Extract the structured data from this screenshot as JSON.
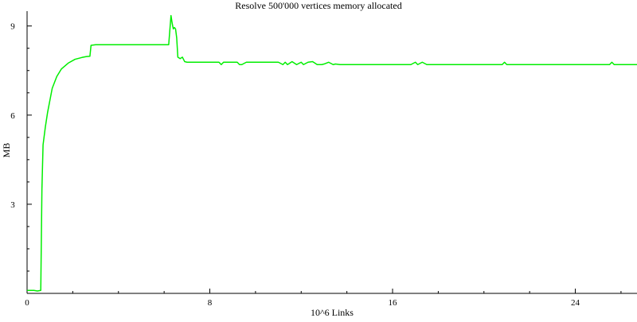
{
  "chart_data": {
    "type": "line",
    "title": "Resolve 500'000 vertices memory allocated",
    "xlabel": "10^6 Links",
    "ylabel": "MB",
    "xlim": [
      0,
      26.7
    ],
    "ylim": [
      0,
      9.5
    ],
    "xticks": [
      0,
      8,
      16,
      24
    ],
    "xtick_labels": [
      "0",
      "8",
      "16",
      "24"
    ],
    "yticks": [
      3,
      6,
      9
    ],
    "ytick_labels": [
      "3",
      "6",
      "9"
    ],
    "grid": false,
    "legend": "none",
    "series": [
      {
        "color": "#00ee00",
        "x": [
          0,
          0.3,
          0.45,
          0.6,
          0.62,
          0.65,
          0.7,
          0.8,
          0.9,
          1.0,
          1.1,
          1.3,
          1.5,
          1.8,
          2.1,
          2.4,
          2.6,
          2.75,
          2.8,
          3.0,
          4.0,
          5.0,
          6.0,
          6.2,
          6.3,
          6.35,
          6.4,
          6.45,
          6.5,
          6.55,
          6.6,
          6.7,
          6.8,
          6.9,
          7.0,
          7.2,
          8.0,
          8.4,
          8.5,
          8.6,
          8.8,
          9.2,
          9.3,
          9.4,
          9.6,
          10.0,
          11.0,
          11.2,
          11.3,
          11.4,
          11.6,
          11.8,
          12.0,
          12.1,
          12.3,
          12.5,
          12.7,
          12.9,
          13.0,
          13.2,
          13.4,
          13.5,
          13.7,
          14.0,
          15.0,
          16.0,
          16.8,
          17.0,
          17.1,
          17.3,
          17.5,
          18.0,
          20.0,
          20.8,
          20.9,
          21.0,
          22.0,
          24.0,
          25.5,
          25.6,
          25.7,
          26.7
        ],
        "y": [
          0.1,
          0.1,
          0.08,
          0.1,
          1.5,
          3.5,
          5.0,
          5.6,
          6.1,
          6.5,
          6.9,
          7.3,
          7.55,
          7.75,
          7.88,
          7.94,
          7.97,
          7.98,
          8.35,
          8.37,
          8.37,
          8.37,
          8.37,
          8.37,
          9.35,
          9.1,
          8.9,
          8.95,
          8.9,
          8.6,
          7.95,
          7.9,
          7.95,
          7.8,
          7.78,
          7.78,
          7.78,
          7.78,
          7.7,
          7.78,
          7.78,
          7.78,
          7.7,
          7.7,
          7.78,
          7.78,
          7.78,
          7.7,
          7.78,
          7.7,
          7.8,
          7.7,
          7.78,
          7.7,
          7.78,
          7.8,
          7.7,
          7.7,
          7.72,
          7.78,
          7.7,
          7.72,
          7.7,
          7.7,
          7.7,
          7.7,
          7.7,
          7.78,
          7.7,
          7.78,
          7.7,
          7.7,
          7.7,
          7.7,
          7.78,
          7.7,
          7.7,
          7.7,
          7.7,
          7.78,
          7.7,
          7.7
        ]
      }
    ]
  }
}
